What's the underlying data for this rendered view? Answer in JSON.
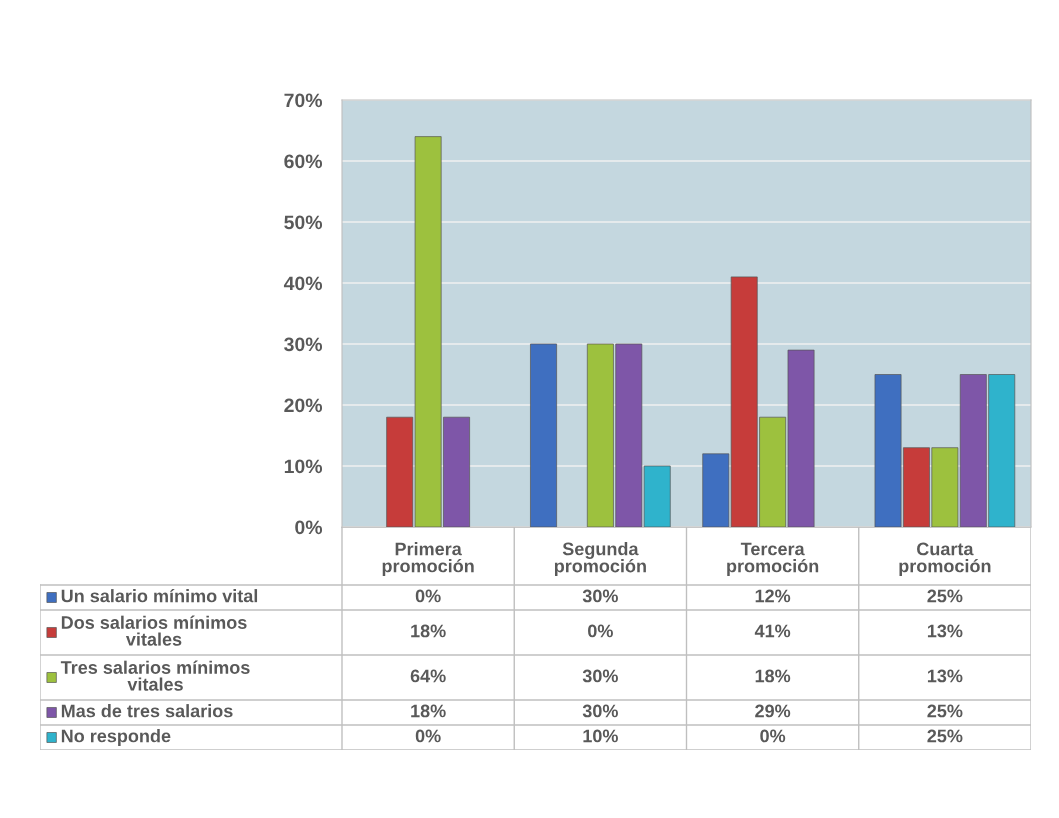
{
  "chart_data": {
    "type": "bar",
    "categories": [
      "Primera\npromoción",
      "Segunda\npromoción",
      "Tercera\npromoción",
      "Cuarta\npromoción"
    ],
    "series": [
      {
        "name": "Un salario mínimo vital",
        "color": "#3f6fc0",
        "values": [
          0,
          30,
          12,
          25
        ],
        "value_labels": [
          "0%",
          "30%",
          "12%",
          "25%"
        ]
      },
      {
        "name": "Dos salarios mínimos vitales",
        "color": "#c63c3a",
        "values": [
          18,
          0,
          41,
          13
        ],
        "value_labels": [
          "18%",
          "0%",
          "41%",
          "13%"
        ]
      },
      {
        "name": "Tres salarios mínimos vitales",
        "color": "#9dc13e",
        "values": [
          64,
          30,
          18,
          13
        ],
        "value_labels": [
          "64%",
          "30%",
          "18%",
          "13%"
        ]
      },
      {
        "name": "Mas de tres salarios",
        "color": "#7e56a8",
        "values": [
          18,
          30,
          29,
          25
        ],
        "value_labels": [
          "18%",
          "30%",
          "29%",
          "25%"
        ]
      },
      {
        "name": "No responde",
        "color": "#2fb3cc",
        "values": [
          0,
          10,
          0,
          25
        ],
        "value_labels": [
          "0%",
          "10%",
          "0%",
          "25%"
        ]
      }
    ],
    "ylim": [
      0,
      70
    ],
    "yticks": [
      {
        "value": 0,
        "label": "0%"
      },
      {
        "value": 10,
        "label": "10%"
      },
      {
        "value": 20,
        "label": "20%"
      },
      {
        "value": 30,
        "label": "30%"
      },
      {
        "value": 40,
        "label": "40%"
      },
      {
        "value": 50,
        "label": "50%"
      },
      {
        "value": 60,
        "label": "60%"
      },
      {
        "value": 70,
        "label": "70%"
      }
    ],
    "grid": "y",
    "legend": "bottom"
  }
}
